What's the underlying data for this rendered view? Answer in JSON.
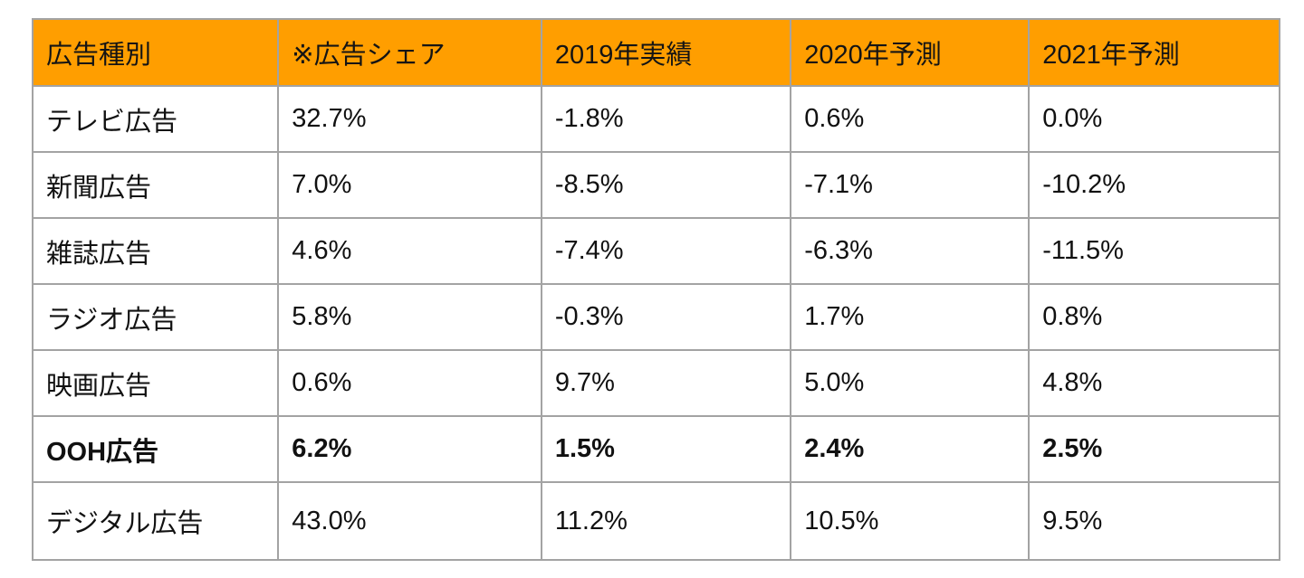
{
  "colors": {
    "header_bg": "#FF9E00",
    "grid_line": "#a3a3a3",
    "text": "#111111",
    "background": "#ffffff"
  },
  "chart_data": {
    "type": "table",
    "title": "",
    "columns": [
      "広告種別",
      "※広告シェア",
      "2019年実績",
      "2020年予測",
      "2021年予測"
    ],
    "rows": [
      [
        "テレビ広告",
        "32.7%",
        "-1.8%",
        "0.6%",
        "0.0%"
      ],
      [
        "新聞広告",
        "7.0%",
        "-8.5%",
        "-7.1%",
        "-10.2%"
      ],
      [
        "雑誌広告",
        "4.6%",
        "-7.4%",
        "-6.3%",
        "-11.5%"
      ],
      [
        "ラジオ広告",
        "5.8%",
        "-0.3%",
        "1.7%",
        "0.8%"
      ],
      [
        "映画広告",
        "0.6%",
        "9.7%",
        "5.0%",
        "4.8%"
      ],
      [
        "OOH広告",
        "6.2%",
        "1.5%",
        "2.4%",
        "2.5%"
      ],
      [
        "デジタル広告",
        "43.0%",
        "11.2%",
        "10.5%",
        "9.5%"
      ]
    ],
    "highlighted_row": "OOH広告",
    "numeric": {
      "categories": [
        "テレビ広告",
        "新聞広告",
        "雑誌広告",
        "ラジオ広告",
        "映画広告",
        "OOH広告",
        "デジタル広告"
      ],
      "series": [
        {
          "name": "※広告シェア",
          "values": [
            32.7,
            7.0,
            4.6,
            5.8,
            0.6,
            6.2,
            43.0
          ]
        },
        {
          "name": "2019年実績",
          "values": [
            -1.8,
            -8.5,
            -7.4,
            -0.3,
            9.7,
            1.5,
            11.2
          ]
        },
        {
          "name": "2020年予測",
          "values": [
            0.6,
            -7.1,
            -6.3,
            1.7,
            5.0,
            2.4,
            10.5
          ]
        },
        {
          "name": "2021年予測",
          "values": [
            0.0,
            -10.2,
            -11.5,
            0.8,
            4.8,
            2.5,
            9.5
          ]
        }
      ],
      "unit": "%"
    }
  }
}
